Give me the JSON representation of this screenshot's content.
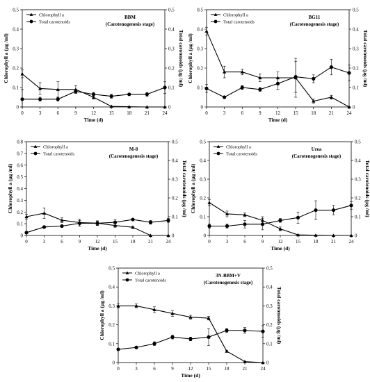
{
  "chart_data": [
    {
      "type": "line",
      "title": "BBM",
      "subtitle": "(Carotenogenesis stage)",
      "xlabel": "Time (d)",
      "ylabel_left": "Chlorophyll a  (μg /ml)",
      "ylabel_right": "Total carotenoids  (μg /ml)",
      "x": [
        0,
        3,
        6,
        9,
        12,
        15,
        18,
        21,
        24
      ],
      "xticks": [
        "0",
        "3",
        "6",
        "9",
        "12",
        "15",
        "18",
        "21",
        "24"
      ],
      "ylim_left": [
        0,
        0.5
      ],
      "ylim_right": [
        0,
        0.5
      ],
      "yticks_left": [
        "0",
        "0.1",
        "0.2",
        "0.3",
        "0.4",
        "0.5"
      ],
      "yticks_right": [
        "0",
        "0.1",
        "0.2",
        "0.3",
        "0.4",
        "0.5"
      ],
      "series": [
        {
          "name": "Chlorophyll a",
          "marker": "triangle",
          "axis": "left",
          "values": [
            0.17,
            0.095,
            0.09,
            0.09,
            0.05,
            0.003,
            0.001,
            0.0,
            0.0
          ],
          "errors": [
            0.02,
            0.03,
            0.04,
            0.02,
            0.01,
            0.002,
            0.001,
            0.0,
            0.0
          ]
        },
        {
          "name": "Total carotenoids",
          "marker": "circle",
          "axis": "right",
          "values": [
            0.04,
            0.04,
            0.04,
            0.08,
            0.065,
            0.055,
            0.065,
            0.065,
            0.1
          ],
          "errors": [
            0.05,
            0.01,
            0.01,
            0.01,
            0.01,
            0.01,
            0.005,
            0.01,
            0.03
          ]
        }
      ]
    },
    {
      "type": "line",
      "title": "BG11",
      "subtitle": "(Carotenogenesis stage)",
      "xlabel": "Time (d)",
      "ylabel_left": "Chlorophyll a  (μg /ml)",
      "ylabel_right": "Total carotenoids  (μg /ml)",
      "x": [
        0,
        3,
        6,
        9,
        12,
        15,
        18,
        21,
        24
      ],
      "xticks": [
        "0",
        "3",
        "6",
        "9",
        "12",
        "15",
        "18",
        "21",
        "24"
      ],
      "ylim_left": [
        0,
        0.5
      ],
      "ylim_right": [
        0,
        0.5
      ],
      "yticks_left": [
        "0",
        "0.1",
        "0.2",
        "0.3",
        "0.4",
        "0.5"
      ],
      "yticks_right": [
        "0",
        "0.1",
        "0.2",
        "0.3",
        "0.4",
        "0.5"
      ],
      "series": [
        {
          "name": "Chlorophyll a",
          "marker": "triangle",
          "axis": "left",
          "values": [
            0.39,
            0.18,
            0.18,
            0.15,
            0.15,
            0.15,
            0.03,
            0.05,
            0.0
          ],
          "errors": [
            0.02,
            0.03,
            0.015,
            0.02,
            0.03,
            0.1,
            0.01,
            0.01,
            0.0
          ]
        },
        {
          "name": "Total carotenoids",
          "marker": "circle",
          "axis": "right",
          "values": [
            0.095,
            0.05,
            0.1,
            0.09,
            0.12,
            0.155,
            0.145,
            0.205,
            0.175
          ],
          "errors": [
            0.02,
            0.005,
            0.01,
            0.01,
            0.03,
            0.08,
            0.02,
            0.04,
            0.04
          ]
        }
      ]
    },
    {
      "type": "line",
      "title": "M-8",
      "subtitle": "(Carotenogenesis stage)",
      "xlabel": "Time (d)",
      "ylabel_left": "Chlorophyll a  (μg /ml)",
      "ylabel_right": "Total carotenoids  (μg /ml)",
      "x": [
        0,
        3,
        6,
        9,
        12,
        15,
        18,
        21,
        24
      ],
      "xticks": [
        "0",
        "3",
        "6",
        "9",
        "12",
        "15",
        "18",
        "21",
        "24"
      ],
      "ylim_left": [
        0,
        0.8
      ],
      "ylim_right": [
        0,
        0.5
      ],
      "yticks_left": [
        "0",
        "0.1",
        "0.2",
        "0.3",
        "0.4",
        "0.5",
        "0.6",
        "0.7",
        "0.8"
      ],
      "yticks_right": [
        "0",
        "0.1",
        "0.2",
        "0.3",
        "0.4",
        "0.5"
      ],
      "series": [
        {
          "name": "Chlorophyll a",
          "marker": "triangle",
          "axis": "left",
          "values": [
            0.16,
            0.19,
            0.13,
            0.11,
            0.105,
            0.085,
            0.07,
            0.0,
            0.0
          ],
          "errors": [
            0.02,
            0.045,
            0.02,
            0.03,
            0.02,
            0.015,
            0.01,
            0.0,
            0.0
          ]
        },
        {
          "name": "Total carotenoids",
          "marker": "circle",
          "axis": "right",
          "values": [
            0.015,
            0.045,
            0.05,
            0.065,
            0.065,
            0.07,
            0.085,
            0.07,
            0.08
          ],
          "errors": [
            0.005,
            0.005,
            0.005,
            0.015,
            0.01,
            0.015,
            0.005,
            0.01,
            0.01
          ]
        }
      ]
    },
    {
      "type": "line",
      "title": "Urea",
      "subtitle": "(Carotenogenesis stage)",
      "xlabel": "Time (d)",
      "ylabel_left": "Chlorophyll a  (μg /ml)",
      "ylabel_right": "Total carotenoids  (μg /ml)",
      "x": [
        0,
        3,
        6,
        9,
        12,
        15,
        18,
        21,
        24
      ],
      "xticks": [
        "0",
        "3",
        "6",
        "9",
        "12",
        "15",
        "18",
        "21",
        "24"
      ],
      "ylim_left": [
        0,
        0.5
      ],
      "ylim_right": [
        0,
        0.5
      ],
      "yticks_left": [
        "0",
        "0.1",
        "0.2",
        "0.3",
        "0.4",
        "0.5"
      ],
      "yticks_right": [
        "0",
        "0.1",
        "0.2",
        "0.3",
        "0.4",
        "0.5"
      ],
      "series": [
        {
          "name": "Chlorophyll a",
          "marker": "triangle",
          "axis": "left",
          "values": [
            0.175,
            0.115,
            0.11,
            0.08,
            0.035,
            0.003,
            0.001,
            0.0,
            0.0
          ],
          "errors": [
            0.015,
            0.015,
            0.01,
            0.02,
            0.01,
            0.002,
            0.001,
            0.0,
            0.0
          ]
        },
        {
          "name": "Total carotenoids",
          "marker": "circle",
          "axis": "right",
          "values": [
            0.05,
            0.05,
            0.06,
            0.06,
            0.08,
            0.095,
            0.135,
            0.135,
            0.16
          ],
          "errors": [
            0.01,
            0.01,
            0.02,
            0.03,
            0.01,
            0.03,
            0.05,
            0.025,
            0.02
          ]
        }
      ]
    },
    {
      "type": "line",
      "title": "3N-BBM+V",
      "subtitle": "(Carotenogenesis stage)",
      "xlabel": "Time (d)",
      "ylabel_left": "Chlorophyll a  (μg /ml)",
      "ylabel_right": "Total carotenoids  (μg /ml)",
      "x": [
        0,
        3,
        6,
        9,
        12,
        15,
        18,
        21,
        24
      ],
      "xticks": [
        "0",
        "3",
        "6",
        "9",
        "12",
        "15",
        "18",
        "21",
        "24"
      ],
      "ylim_left": [
        0,
        0.5
      ],
      "ylim_right": [
        0,
        0.5
      ],
      "yticks_left": [
        "0",
        "0.1",
        "0.2",
        "0.3",
        "0.4",
        "0.5"
      ],
      "yticks_right": [
        "0",
        "0.1",
        "0.2",
        "0.3",
        "0.4",
        "0.5"
      ],
      "series": [
        {
          "name": "Chlorophyll a",
          "marker": "triangle",
          "axis": "left",
          "values": [
            0.3,
            0.3,
            0.28,
            0.26,
            0.24,
            0.235,
            0.06,
            0.005,
            0.0
          ],
          "errors": [
            0.01,
            0.01,
            0.015,
            0.015,
            0.01,
            0.01,
            0.005,
            0.002,
            0.0
          ]
        },
        {
          "name": "Total carotenoids",
          "marker": "circle",
          "axis": "right",
          "values": [
            0.07,
            0.08,
            0.1,
            0.135,
            0.125,
            0.135,
            0.17,
            0.17,
            0.165
          ],
          "errors": [
            0.005,
            0.005,
            0.01,
            0.01,
            0.01,
            0.045,
            0.01,
            0.015,
            0.03
          ]
        }
      ]
    }
  ]
}
